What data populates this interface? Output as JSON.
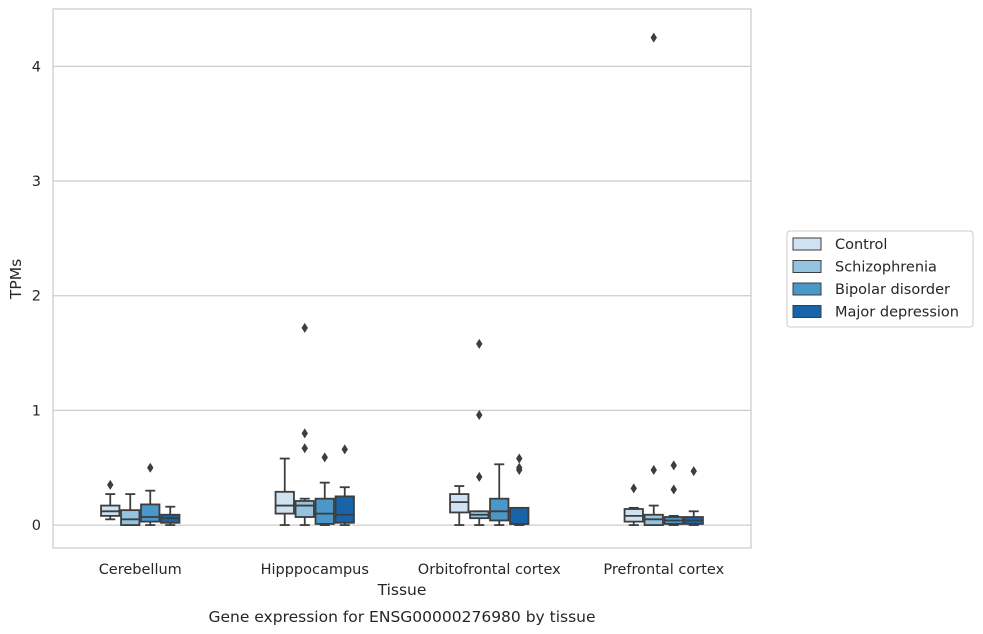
{
  "caption": "Gene expression for ENSG00000276980 by tissue",
  "chart_data": {
    "type": "box",
    "xlabel": "Tissue",
    "ylabel": "TPMs",
    "ylim": [
      -0.2,
      4.5
    ],
    "yticks": [
      0,
      1,
      2,
      3,
      4
    ],
    "grid": "horizontal",
    "legend_position": "right",
    "categories": [
      "Cerebellum",
      "Hipppocampus",
      "Orbitofrontal cortex",
      "Prefrontal cortex"
    ],
    "series": [
      {
        "name": "Control",
        "color": "#d0e1f2",
        "boxes": [
          {
            "whisker_low": 0.05,
            "q1": 0.08,
            "median": 0.12,
            "q3": 0.17,
            "whisker_high": 0.27,
            "outliers": [
              0.35
            ]
          },
          {
            "whisker_low": 0.0,
            "q1": 0.1,
            "median": 0.17,
            "q3": 0.29,
            "whisker_high": 0.58,
            "outliers": []
          },
          {
            "whisker_low": 0.0,
            "q1": 0.11,
            "median": 0.2,
            "q3": 0.27,
            "whisker_high": 0.34,
            "outliers": []
          },
          {
            "whisker_low": 0.0,
            "q1": 0.03,
            "median": 0.08,
            "q3": 0.14,
            "whisker_high": 0.15,
            "outliers": [
              0.32
            ]
          }
        ]
      },
      {
        "name": "Schizophrenia",
        "color": "#94c4df",
        "boxes": [
          {
            "whisker_low": 0.0,
            "q1": 0.0,
            "median": 0.05,
            "q3": 0.13,
            "whisker_high": 0.27,
            "outliers": []
          },
          {
            "whisker_low": 0.0,
            "q1": 0.07,
            "median": 0.17,
            "q3": 0.21,
            "whisker_high": 0.23,
            "outliers": [
              0.67,
              0.8,
              1.72
            ]
          },
          {
            "whisker_low": 0.0,
            "q1": 0.06,
            "median": 0.09,
            "q3": 0.12,
            "whisker_high": 0.12,
            "outliers": [
              0.42,
              0.96,
              1.58
            ]
          },
          {
            "whisker_low": 0.0,
            "q1": 0.0,
            "median": 0.05,
            "q3": 0.09,
            "whisker_high": 0.17,
            "outliers": [
              0.48,
              4.25
            ]
          }
        ]
      },
      {
        "name": "Bipolar disorder",
        "color": "#4a98c9",
        "boxes": [
          {
            "whisker_low": 0.0,
            "q1": 0.03,
            "median": 0.07,
            "q3": 0.18,
            "whisker_high": 0.3,
            "outliers": [
              0.5
            ]
          },
          {
            "whisker_low": 0.0,
            "q1": 0.01,
            "median": 0.1,
            "q3": 0.23,
            "whisker_high": 0.37,
            "outliers": [
              0.59
            ]
          },
          {
            "whisker_low": 0.0,
            "q1": 0.04,
            "median": 0.12,
            "q3": 0.23,
            "whisker_high": 0.53,
            "outliers": []
          },
          {
            "whisker_low": 0.0,
            "q1": 0.01,
            "median": 0.04,
            "q3": 0.07,
            "whisker_high": 0.08,
            "outliers": [
              0.31,
              0.52
            ]
          }
        ]
      },
      {
        "name": "Major depression",
        "color": "#1764ab",
        "boxes": [
          {
            "whisker_low": 0.0,
            "q1": 0.02,
            "median": 0.06,
            "q3": 0.09,
            "whisker_high": 0.16,
            "outliers": []
          },
          {
            "whisker_low": 0.0,
            "q1": 0.02,
            "median": 0.09,
            "q3": 0.25,
            "whisker_high": 0.33,
            "outliers": [
              0.66
            ]
          },
          {
            "whisker_low": 0.0,
            "q1": 0.01,
            "median": 0.01,
            "q3": 0.15,
            "whisker_high": 0.15,
            "outliers": [
              0.48,
              0.5,
              0.58
            ]
          },
          {
            "whisker_low": 0.0,
            "q1": 0.01,
            "median": 0.04,
            "q3": 0.07,
            "whisker_high": 0.12,
            "outliers": [
              0.47
            ]
          }
        ]
      }
    ]
  }
}
